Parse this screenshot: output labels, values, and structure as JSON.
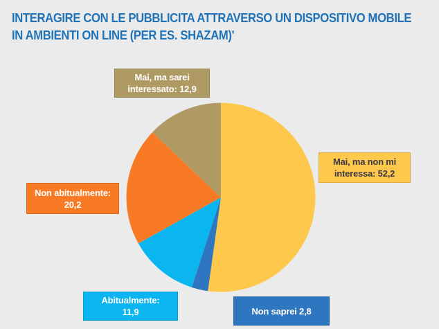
{
  "background_color": "#EAEBEA",
  "title": {
    "lines": [
      "INTERAGIRE CON LE PUBBLICITA ATTRAVERSO UN DISPOSITIVO MOBILE",
      "IN AMBIENTI ON LINE (PER ES. SHAZAM)'"
    ],
    "color": "#2173B9"
  },
  "chart_data": {
    "type": "pie",
    "title": "INTERAGIRE CON LE PUBBLICITA ATTRAVERSO UN DISPOSITIVO MOBILE IN AMBIENTI ON LINE (PER ES. SHAZAM)'",
    "unit": "percent",
    "start_angle_deg": 0,
    "direction": "clockwise",
    "legend_position": "callout-boxes",
    "slices": [
      {
        "label": "Mai, ma non mi interessa",
        "value": 52.2,
        "color": "#FDC84C"
      },
      {
        "label": "Non saprei",
        "value": 2.8,
        "color": "#2E76BF"
      },
      {
        "label": "Abitualmente",
        "value": 11.9,
        "color": "#0AB5F0"
      },
      {
        "label": "Non abitualmente",
        "value": 20.2,
        "color": "#F87A25"
      },
      {
        "label": "Mai, ma sarei interessato",
        "value": 12.9,
        "color": "#B09A63"
      }
    ]
  },
  "callouts": [
    {
      "id": "mai-sarei",
      "lines": [
        "Mai, ma sarei",
        "interessato: 12,9"
      ],
      "bg": "#B09A63",
      "text_color": "#FFFFFF"
    },
    {
      "id": "mai-non-interessa",
      "lines": [
        "Mai, ma non mi",
        "interessa: 52,2"
      ],
      "bg": "#FDC84C",
      "text_color": "#3B3B46"
    },
    {
      "id": "non-abitualmente",
      "lines": [
        "Non abitualmente:",
        "20,2"
      ],
      "bg": "#F87A25",
      "text_color": "#FFFFFF"
    },
    {
      "id": "abitualmente",
      "lines": [
        "Abitualmente:",
        "11,9"
      ],
      "bg": "#0AB5F0",
      "text_color": "#FFFFFF"
    },
    {
      "id": "non-saprei",
      "lines": [
        "Non saprei 2,8"
      ],
      "bg": "#2E76BF",
      "text_color": "#FFFFFF"
    }
  ]
}
